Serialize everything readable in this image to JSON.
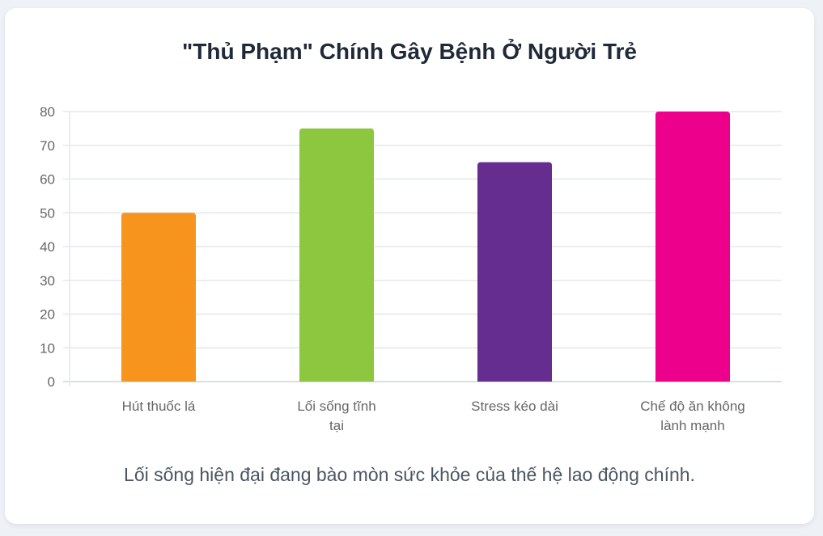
{
  "chart_data": {
    "type": "bar",
    "title": "\"Thủ Phạm\" Chính Gây Bệnh Ở Người Trẻ",
    "categories": [
      [
        "Hút thuốc lá"
      ],
      [
        "Lối sống tĩnh",
        "tại"
      ],
      [
        "Stress kéo dài"
      ],
      [
        "Chế độ ăn không",
        "lành mạnh"
      ]
    ],
    "values": [
      50,
      75,
      65,
      80
    ],
    "colors": [
      "#f7941d",
      "#8dc63f",
      "#662d91",
      "#ec008c"
    ],
    "ylim": [
      0,
      80
    ],
    "yticks": [
      0,
      10,
      20,
      30,
      40,
      50,
      60,
      70,
      80
    ],
    "grid": true,
    "xlabel": "",
    "ylabel": ""
  },
  "caption": "Lối sống hiện đại đang bào mòn sức khỏe của thế hệ lao động chính."
}
